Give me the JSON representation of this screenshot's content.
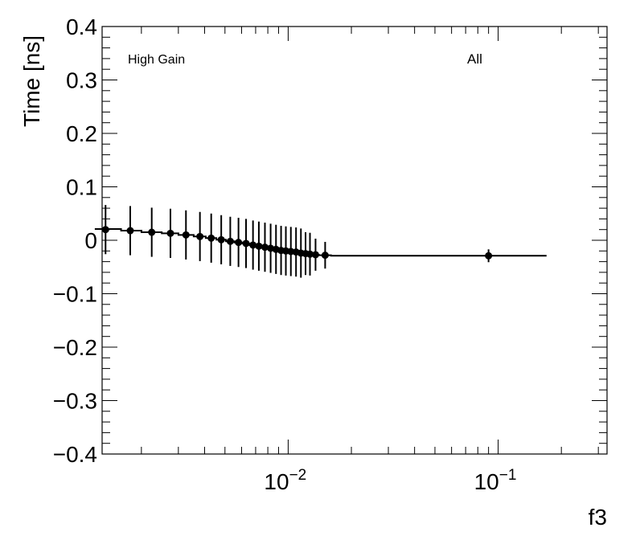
{
  "chart_data": {
    "type": "scatter",
    "xlabel": "f3",
    "ylabel": "Time [ns]",
    "xscale": "log",
    "xlim": [
      0.0013,
      0.33
    ],
    "ylim": [
      -0.4,
      0.4
    ],
    "y_ticks": [
      {
        "value": 0.4,
        "label": "0.4"
      },
      {
        "value": 0.3,
        "label": "0.3"
      },
      {
        "value": 0.2,
        "label": "0.2"
      },
      {
        "value": 0.1,
        "label": "0.1"
      },
      {
        "value": 0.0,
        "label": "0"
      },
      {
        "value": -0.1,
        "label": "−0.1"
      },
      {
        "value": -0.2,
        "label": "−0.2"
      },
      {
        "value": -0.3,
        "label": "−0.3"
      },
      {
        "value": -0.4,
        "label": "−0.4"
      }
    ],
    "x_ticks": [
      {
        "value": 0.01,
        "base": "10",
        "exp": "−2"
      },
      {
        "value": 0.1,
        "base": "10",
        "exp": "−1"
      }
    ],
    "annotations": {
      "left": "High Gain",
      "right": "All"
    },
    "series": [
      {
        "points": [
          {
            "x": 0.00135,
            "y": 0.02,
            "err": 0.046
          },
          {
            "x": 0.00177,
            "y": 0.018,
            "err": 0.046
          },
          {
            "x": 0.00224,
            "y": 0.015,
            "err": 0.046
          },
          {
            "x": 0.00275,
            "y": 0.013,
            "err": 0.046
          },
          {
            "x": 0.00326,
            "y": 0.01,
            "err": 0.046
          },
          {
            "x": 0.0038,
            "y": 0.007,
            "err": 0.046
          },
          {
            "x": 0.0043,
            "y": 0.004,
            "err": 0.046
          },
          {
            "x": 0.0048,
            "y": 0.001,
            "err": 0.046
          },
          {
            "x": 0.0053,
            "y": -0.002,
            "err": 0.046
          },
          {
            "x": 0.0058,
            "y": -0.004,
            "err": 0.046
          },
          {
            "x": 0.0063,
            "y": -0.006,
            "err": 0.046
          },
          {
            "x": 0.0068,
            "y": -0.009,
            "err": 0.046
          },
          {
            "x": 0.00725,
            "y": -0.011,
            "err": 0.046
          },
          {
            "x": 0.00775,
            "y": -0.013,
            "err": 0.046
          },
          {
            "x": 0.00825,
            "y": -0.015,
            "err": 0.046
          },
          {
            "x": 0.00875,
            "y": -0.017,
            "err": 0.046
          },
          {
            "x": 0.00925,
            "y": -0.019,
            "err": 0.046
          },
          {
            "x": 0.00975,
            "y": -0.02,
            "err": 0.046
          },
          {
            "x": 0.0103,
            "y": -0.021,
            "err": 0.046
          },
          {
            "x": 0.0109,
            "y": -0.022,
            "err": 0.046
          },
          {
            "x": 0.0115,
            "y": -0.024,
            "err": 0.046
          },
          {
            "x": 0.0121,
            "y": -0.025,
            "err": 0.04
          },
          {
            "x": 0.0127,
            "y": -0.026,
            "err": 0.04
          },
          {
            "x": 0.0135,
            "y": -0.027,
            "err": 0.03
          },
          {
            "x": 0.015,
            "y": -0.028,
            "err": 0.025
          },
          {
            "x": 0.09,
            "y": -0.029,
            "err": 0.012
          }
        ]
      }
    ],
    "step_line": [
      {
        "x": 0.0012,
        "y": 0.021
      },
      {
        "x": 0.0016,
        "y": 0.021
      },
      {
        "x": 0.0016,
        "y": 0.018
      },
      {
        "x": 0.002,
        "y": 0.018
      },
      {
        "x": 0.002,
        "y": 0.015
      },
      {
        "x": 0.0025,
        "y": 0.015
      },
      {
        "x": 0.0025,
        "y": 0.013
      },
      {
        "x": 0.003,
        "y": 0.013
      },
      {
        "x": 0.003,
        "y": 0.01
      },
      {
        "x": 0.00355,
        "y": 0.01
      },
      {
        "x": 0.00355,
        "y": 0.007
      },
      {
        "x": 0.00405,
        "y": 0.007
      },
      {
        "x": 0.00405,
        "y": 0.004
      },
      {
        "x": 0.00455,
        "y": 0.004
      },
      {
        "x": 0.00455,
        "y": 0.001
      },
      {
        "x": 0.00505,
        "y": 0.001
      },
      {
        "x": 0.00505,
        "y": -0.002
      },
      {
        "x": 0.00555,
        "y": -0.002
      },
      {
        "x": 0.00555,
        "y": -0.004
      },
      {
        "x": 0.00605,
        "y": -0.004
      },
      {
        "x": 0.00605,
        "y": -0.006
      },
      {
        "x": 0.00655,
        "y": -0.006
      },
      {
        "x": 0.00655,
        "y": -0.009
      },
      {
        "x": 0.007,
        "y": -0.009
      },
      {
        "x": 0.007,
        "y": -0.011
      },
      {
        "x": 0.0075,
        "y": -0.011
      },
      {
        "x": 0.0075,
        "y": -0.013
      },
      {
        "x": 0.008,
        "y": -0.013
      },
      {
        "x": 0.008,
        "y": -0.015
      },
      {
        "x": 0.0085,
        "y": -0.015
      },
      {
        "x": 0.0085,
        "y": -0.017
      },
      {
        "x": 0.009,
        "y": -0.017
      },
      {
        "x": 0.009,
        "y": -0.019
      },
      {
        "x": 0.0095,
        "y": -0.019
      },
      {
        "x": 0.0095,
        "y": -0.02
      },
      {
        "x": 0.01,
        "y": -0.02
      },
      {
        "x": 0.01,
        "y": -0.021
      },
      {
        "x": 0.0106,
        "y": -0.021
      },
      {
        "x": 0.0106,
        "y": -0.022
      },
      {
        "x": 0.0112,
        "y": -0.022
      },
      {
        "x": 0.0112,
        "y": -0.024
      },
      {
        "x": 0.0118,
        "y": -0.024
      },
      {
        "x": 0.0118,
        "y": -0.025
      },
      {
        "x": 0.0124,
        "y": -0.025
      },
      {
        "x": 0.0124,
        "y": -0.026
      },
      {
        "x": 0.0131,
        "y": -0.026
      },
      {
        "x": 0.0131,
        "y": -0.027
      },
      {
        "x": 0.014,
        "y": -0.027
      },
      {
        "x": 0.014,
        "y": -0.028
      },
      {
        "x": 0.016,
        "y": -0.028
      },
      {
        "x": 0.016,
        "y": -0.029
      },
      {
        "x": 0.17,
        "y": -0.029
      }
    ],
    "grid": false,
    "colors": {
      "marker": "#000000",
      "line": "#000000",
      "frame": "#000000"
    }
  }
}
